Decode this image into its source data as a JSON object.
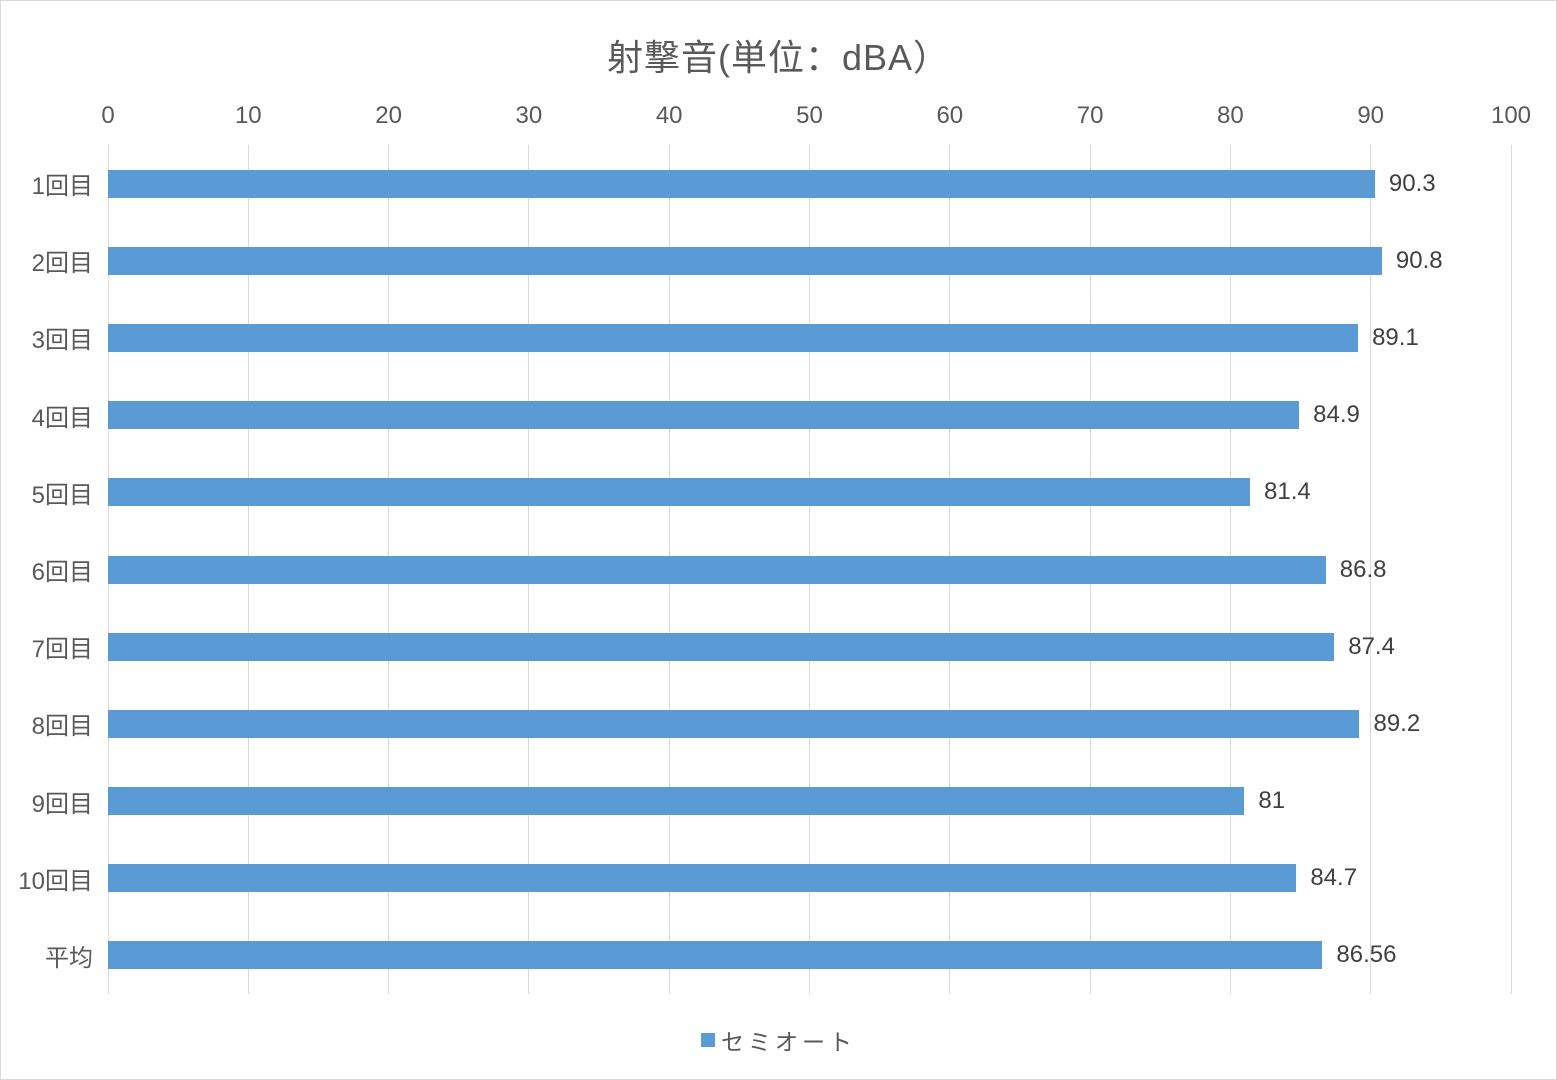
{
  "title": "射撃音(単位：dBA）",
  "chart_data": {
    "type": "bar",
    "orientation": "horizontal",
    "title": "射撃音(単位：dBA）",
    "categories": [
      "1回目",
      "2回目",
      "3回目",
      "4回目",
      "5回目",
      "6回目",
      "7回目",
      "8回目",
      "9回目",
      "10回目",
      "平均"
    ],
    "series": [
      {
        "name": "セミオート",
        "values": [
          90.3,
          90.8,
          89.1,
          84.9,
          81.4,
          86.8,
          87.4,
          89.2,
          81,
          84.7,
          86.56
        ],
        "labels": [
          "90.3",
          "90.8",
          "89.1",
          "84.9",
          "81.4",
          "86.8",
          "87.4",
          "89.2",
          "81",
          "84.7",
          "86.56"
        ]
      }
    ],
    "xlim": [
      0,
      100
    ],
    "x_ticks": [
      0,
      10,
      20,
      30,
      40,
      50,
      60,
      70,
      80,
      90,
      100
    ],
    "grid": true,
    "legend_position": "bottom"
  },
  "legend": {
    "label": "セミオート"
  },
  "colors": {
    "bar": "#5b9bd5",
    "gridline": "#d9d9d9",
    "title_text": "#595959",
    "axis_text": "#595959",
    "value_text": "#404040",
    "legend_marker": "#5b9bd5",
    "chart_border": "#d9d9d9",
    "background": "#ffffff"
  }
}
